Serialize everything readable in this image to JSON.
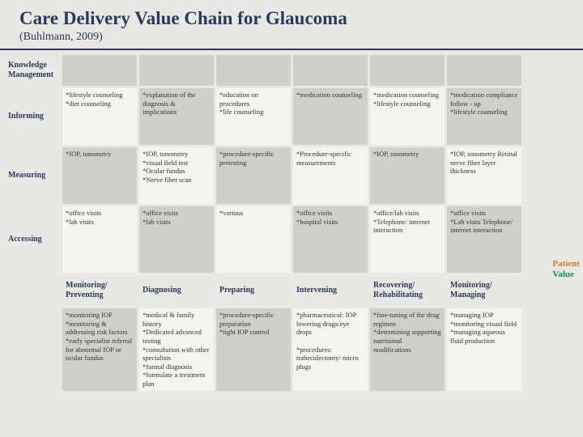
{
  "title": "Care Delivery Value Chain for Glaucoma",
  "subtitle": "(Buhlmann, 2009)",
  "colors": {
    "heading": "#2a3a5e",
    "cell_light": "#f4f4f0",
    "cell_dark": "#cfd0cc",
    "page_bg": "#e8e8e4",
    "patient": "#d97a2a",
    "value": "#1a8a5a"
  },
  "fontsize": {
    "title": 23,
    "subtitle": 14,
    "rowlabel": 10,
    "stage": 10,
    "cell": 8.5
  },
  "rowLabels": [
    "Knowledge Management",
    "Informing",
    "Measuring",
    "Accessing"
  ],
  "stages": [
    "Monitoring/ Preventing",
    "Diagnosing",
    "Preparing",
    "Intervening",
    "Recovering/ Rehabilitating",
    "Monitoring/ Managing"
  ],
  "sideOutput": {
    "line1": "Patient",
    "line2": "Value"
  },
  "cells": {
    "informing": [
      "*lifestyle counseling\n*diet counseling",
      "*explanation of the diagnosis & implications",
      "*education on procedures\n*life counseling",
      "*medication counseling",
      "*medication counseling\n*lifestyle counseling",
      "*medication compliance follow - up\n*lifestyle counseling"
    ],
    "measuring": [
      "*IOP, tonometry",
      "*IOP, tonometry\n*visual field test\n*Ocular fundus\n*Nerve fiber scan",
      "*procedure-specific pretesting",
      "*Procedure-specific measurements",
      "*IOP, tonometry",
      "*IOP, tonometry Retinal nerve fiber layer thickness"
    ],
    "accessing": [
      "*office visits\n*lab visits",
      "*office visits\n*lab visits",
      "*various",
      "*office visits\n*hospital visits",
      "*office/lab visits\n*Telephone/ internet interaction",
      "*office visits\n*Lab visits Telephone/ internet interaction"
    ],
    "activities": [
      "*monitoring IOP\n*monitoring & addressing risk factors\n*early specialist referral for abnormal IOP or ocular fundus",
      "*medical & family history\n*Dedicated advanced testing\n*consultation with other specialists\n*formal diagnosis\n*formulate a treatment plan",
      "*procedure-specific preparation\n*tight IOP control",
      "*pharmaceutical: IOP lowering drugs/eye drops\n\n*procedures: trabeculectomy/ micro plugs",
      "*fine-tuning of the drug regimen\n*determining supporting nutritional modifications",
      "*managing IOP\n*monitoring visual field\n*managing aqueous fluid production"
    ]
  }
}
